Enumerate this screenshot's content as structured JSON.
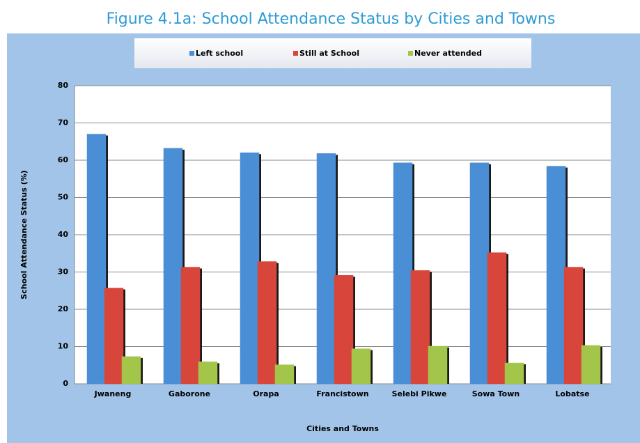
{
  "chart_data": {
    "type": "bar",
    "title": "Figure 4.1a: School Attendance Status by Cities and Towns",
    "xlabel": "Cities and Towns",
    "ylabel": "School Attendance Status (%)",
    "categories": [
      "Jwaneng",
      "Gaborone",
      "Orapa",
      "Francistown",
      "Selebi Pikwe",
      "Sowa Town",
      "Lobatse"
    ],
    "series": [
      {
        "name": "Left school",
        "color": "#4a8ed6",
        "values": [
          67,
          63.2,
          62,
          61.8,
          59.3,
          59.3,
          58.4
        ]
      },
      {
        "name": "Still at School",
        "color": "#d8453b",
        "values": [
          25.7,
          31.3,
          32.8,
          29.1,
          30.4,
          35.2,
          31.3
        ]
      },
      {
        "name": "Never attended",
        "color": "#a3c64a",
        "values": [
          7.3,
          5.9,
          5.1,
          9.4,
          10.1,
          5.6,
          10.3
        ]
      }
    ],
    "ylim": [
      0,
      80
    ],
    "yticks": [
      0,
      10,
      20,
      30,
      40,
      50,
      60,
      70,
      80
    ],
    "grid": true,
    "legend": "top"
  }
}
